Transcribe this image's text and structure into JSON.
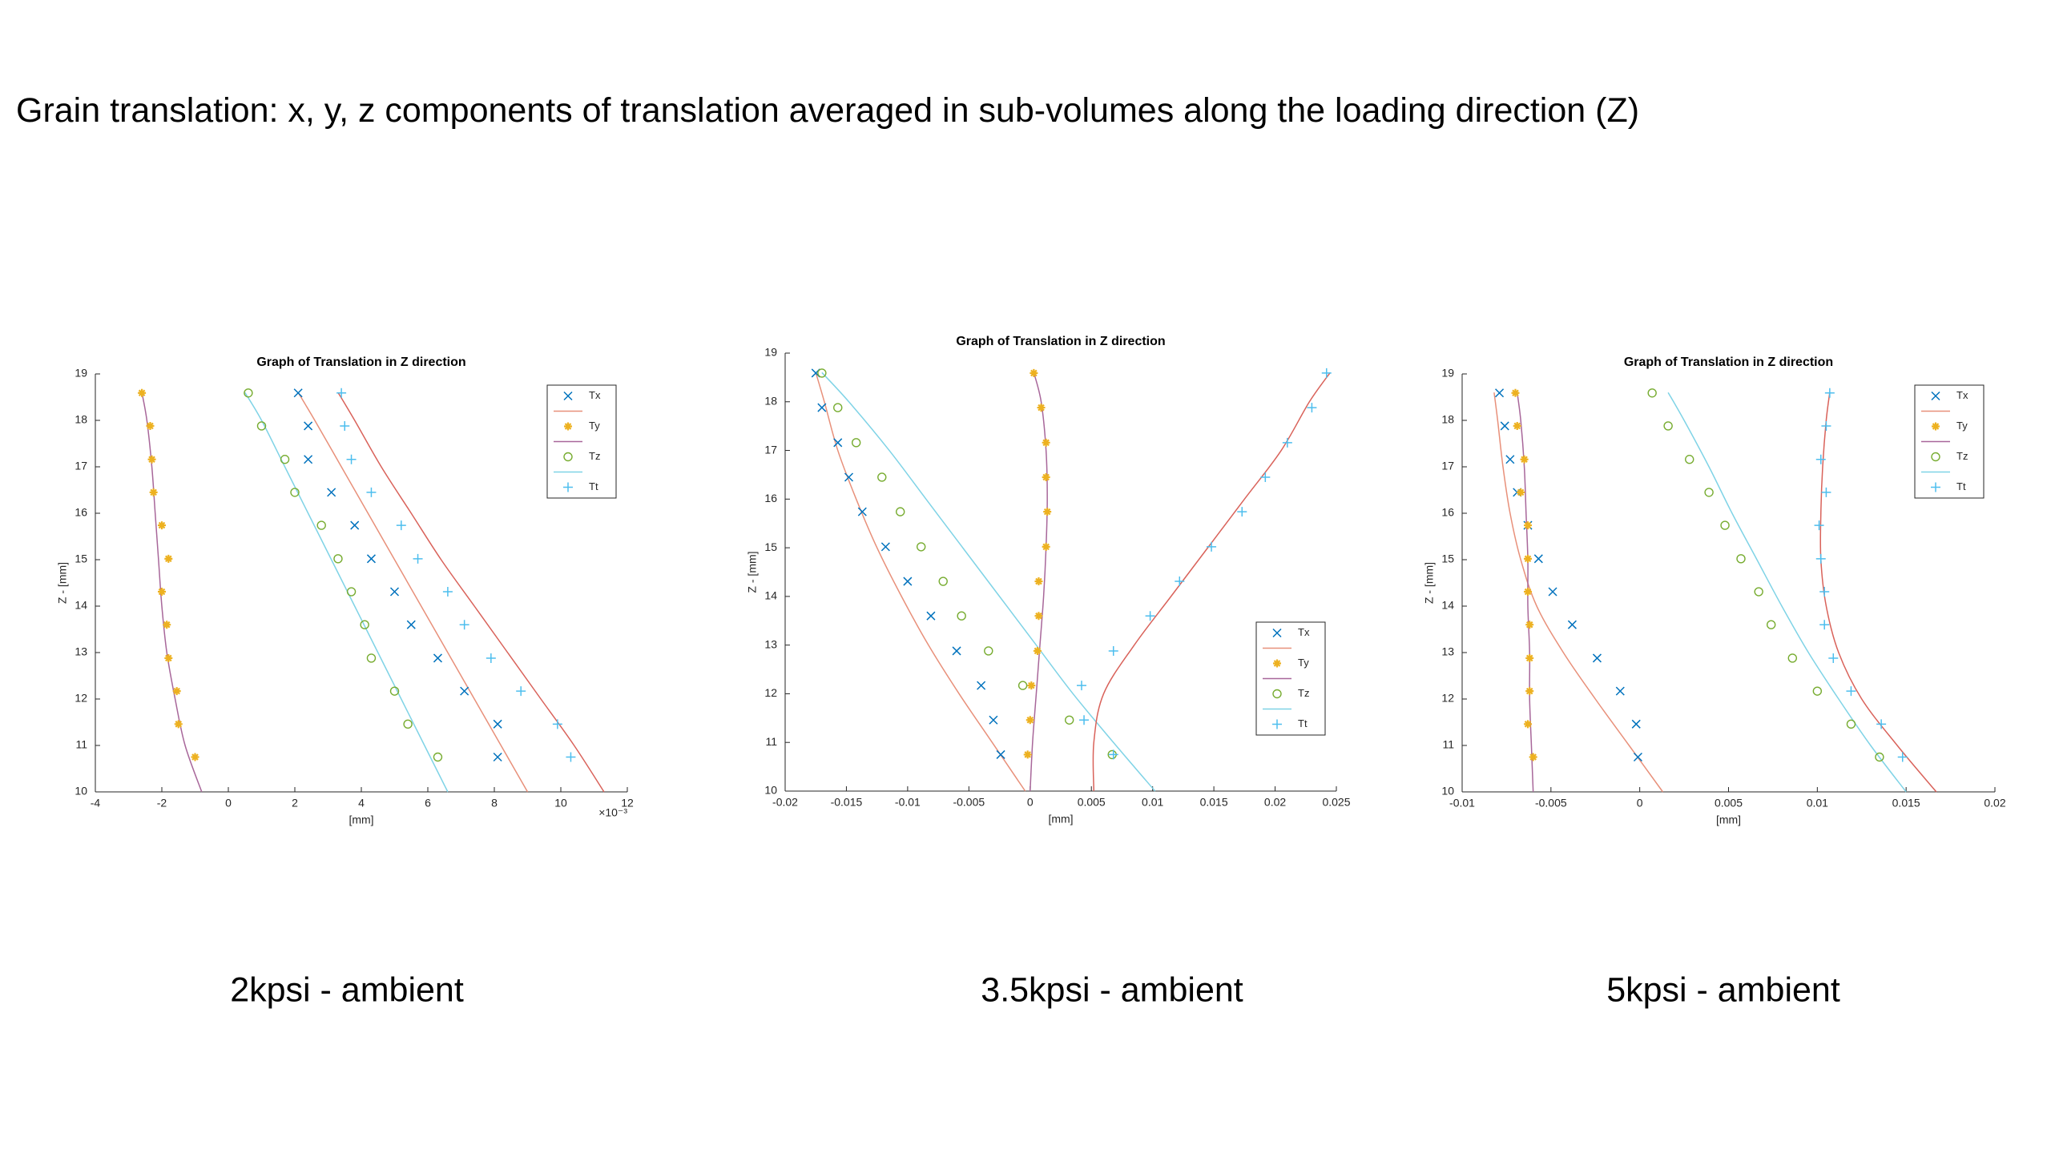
{
  "title": "Grain translation: x, y, z components of translation averaged in sub-volumes along the loading direction (Z)",
  "captions": [
    "2kpsi - ambient",
    "3.5kpsi - ambient",
    "5kpsi - ambient"
  ],
  "chart_data": [
    {
      "type": "scatter",
      "title": "Graph of Translation in Z direction",
      "x_label": "[mm]",
      "y_label": "Z - [mm]",
      "x_exponent": "×10⁻³",
      "xlim": [
        -4,
        12
      ],
      "xticks": [
        -4,
        -2,
        0,
        2,
        4,
        6,
        8,
        10,
        12
      ],
      "ylim": [
        10,
        19
      ],
      "yticks": [
        10,
        11,
        12,
        13,
        14,
        15,
        16,
        17,
        18,
        19
      ],
      "legend": "northeast",
      "grid": false,
      "y": [
        10.75,
        11.46,
        12.17,
        12.88,
        13.6,
        14.31,
        15.02,
        15.74,
        16.45,
        17.16,
        17.88,
        18.59
      ],
      "fit_y": [
        10,
        11,
        12,
        13,
        14,
        15,
        16,
        17,
        18,
        18.6
      ],
      "series": [
        {
          "name": "Tx",
          "color": "#0072bd",
          "marker": "x",
          "fit_color": "#e8907a",
          "fit_in_legend": true,
          "x": [
            8.1,
            8.1,
            7.1,
            6.3,
            5.5,
            5.0,
            4.3,
            3.8,
            3.1,
            2.4,
            2.4,
            2.1
          ],
          "fit_x": [
            9.0,
            8.2,
            7.4,
            6.6,
            5.8,
            5.0,
            4.2,
            3.4,
            2.6,
            2.1
          ]
        },
        {
          "name": "Ty",
          "color": "#edb120",
          "marker": "*",
          "fit_color": "#a8679a",
          "fit_in_legend": true,
          "x": [
            -1.0,
            -1.5,
            -1.55,
            -1.8,
            -1.85,
            -2.0,
            -1.8,
            -2.0,
            -2.25,
            -2.3,
            -2.35,
            -2.6
          ],
          "fit_x": [
            -0.8,
            -1.3,
            -1.6,
            -1.85,
            -2.0,
            -2.1,
            -2.2,
            -2.3,
            -2.45,
            -2.6
          ]
        },
        {
          "name": "Tz",
          "color": "#77ac30",
          "marker": "o",
          "fit_color": "#7fd3e6",
          "fit_in_legend": true,
          "x": [
            6.3,
            5.4,
            5.0,
            4.3,
            4.1,
            3.7,
            3.3,
            2.8,
            2.0,
            1.7,
            1.0,
            0.6
          ],
          "fit_x": [
            6.6,
            5.9,
            5.2,
            4.5,
            3.8,
            3.1,
            2.4,
            1.7,
            1.0,
            0.5
          ]
        },
        {
          "name": "Tt",
          "color": "#4dbeee",
          "marker": "+",
          "fit_color": "#d9625a",
          "fit_in_legend": false,
          "x": [
            10.3,
            9.9,
            8.8,
            7.9,
            7.1,
            6.6,
            5.7,
            5.2,
            4.3,
            3.7,
            3.5,
            3.4
          ],
          "fit_x": [
            11.3,
            10.4,
            9.4,
            8.4,
            7.4,
            6.4,
            5.5,
            4.6,
            3.8,
            3.3
          ]
        }
      ]
    },
    {
      "type": "scatter",
      "title": "Graph of Translation in Z direction",
      "x_label": "[mm]",
      "y_label": "Z - [mm]",
      "xlim": [
        -0.02,
        0.025
      ],
      "xticks": [
        -0.02,
        -0.015,
        -0.01,
        -0.005,
        0,
        0.005,
        0.01,
        0.015,
        0.02,
        0.025
      ],
      "ylim": [
        10,
        19
      ],
      "yticks": [
        10,
        11,
        12,
        13,
        14,
        15,
        16,
        17,
        18,
        19
      ],
      "legend": "southeast",
      "grid": false,
      "y": [
        10.75,
        11.46,
        12.17,
        12.88,
        13.6,
        14.31,
        15.02,
        15.74,
        16.45,
        17.16,
        17.88,
        18.59
      ],
      "fit_y": [
        10,
        11,
        12,
        13,
        14,
        15,
        16,
        17,
        18,
        18.6
      ],
      "series": [
        {
          "name": "Tx",
          "color": "#0072bd",
          "marker": "x",
          "fit_color": "#e8907a",
          "fit_in_legend": true,
          "x": [
            -0.0024,
            -0.003,
            -0.004,
            -0.006,
            -0.0081,
            -0.01,
            -0.0118,
            -0.0137,
            -0.0148,
            -0.0157,
            -0.017,
            -0.0175
          ],
          "fit_x": [
            -0.0004,
            -0.0031,
            -0.0058,
            -0.0083,
            -0.0105,
            -0.0125,
            -0.0142,
            -0.0157,
            -0.0168,
            -0.0175
          ]
        },
        {
          "name": "Ty",
          "color": "#edb120",
          "marker": "*",
          "fit_color": "#a8679a",
          "fit_in_legend": true,
          "x": [
            -0.0002,
            0,
            0.0001,
            0.0006,
            0.0007,
            0.0007,
            0.0013,
            0.0014,
            0.0013,
            0.0013,
            0.0009,
            0.0003
          ],
          "fit_x": [
            0,
            0.0002,
            0.0005,
            0.0008,
            0.0011,
            0.0013,
            0.0014,
            0.0013,
            0.0009,
            0.0003
          ]
        },
        {
          "name": "Tz",
          "color": "#77ac30",
          "marker": "o",
          "fit_color": "#7fd3e6",
          "fit_in_legend": true,
          "x": [
            0.0067,
            0.0032,
            -0.0006,
            -0.0034,
            -0.0056,
            -0.0071,
            -0.0089,
            -0.0106,
            -0.0121,
            -0.0142,
            -0.0157,
            -0.017
          ],
          "fit_x": [
            0.0102,
            0.0068,
            0.0035,
            0.0005,
            -0.0025,
            -0.0055,
            -0.0085,
            -0.0115,
            -0.0148,
            -0.017
          ]
        },
        {
          "name": "Tt",
          "color": "#4dbeee",
          "marker": "+",
          "fit_color": "#d9625a",
          "fit_in_legend": false,
          "x": [
            0.0068,
            0.0044,
            0.0042,
            0.0068,
            0.0098,
            0.0122,
            0.0148,
            0.0173,
            0.0192,
            0.021,
            0.023,
            0.0242
          ],
          "fit_x": [
            0.0052,
            0.0052,
            0.006,
            0.0085,
            0.0115,
            0.0145,
            0.0175,
            0.0205,
            0.0228,
            0.0245
          ]
        }
      ]
    },
    {
      "type": "scatter",
      "title": "Graph of Translation in Z direction",
      "x_label": "[mm]",
      "y_label": "Z - [mm]",
      "xlim": [
        -0.01,
        0.02
      ],
      "xticks": [
        -0.01,
        -0.005,
        0,
        0.005,
        0.01,
        0.015,
        0.02
      ],
      "ylim": [
        10,
        19
      ],
      "yticks": [
        10,
        11,
        12,
        13,
        14,
        15,
        16,
        17,
        18,
        19
      ],
      "legend": "northeast",
      "grid": false,
      "y": [
        10.75,
        11.46,
        12.17,
        12.88,
        13.6,
        14.31,
        15.02,
        15.74,
        16.45,
        17.16,
        17.88,
        18.59
      ],
      "fit_y": [
        10,
        11,
        12,
        13,
        14,
        15,
        16,
        17,
        18,
        18.6
      ],
      "series": [
        {
          "name": "Tx",
          "color": "#0072bd",
          "marker": "x",
          "fit_color": "#e8907a",
          "fit_in_legend": true,
          "x": [
            -0.0001,
            -0.0002,
            -0.0011,
            -0.0024,
            -0.0038,
            -0.0049,
            -0.0057,
            -0.0063,
            -0.0069,
            -0.0073,
            -0.0076,
            -0.0079
          ],
          "fit_x": [
            0.0013,
            -0.0006,
            -0.0025,
            -0.0043,
            -0.0058,
            -0.0067,
            -0.0073,
            -0.0077,
            -0.008,
            -0.0082
          ]
        },
        {
          "name": "Ty",
          "color": "#edb120",
          "marker": "*",
          "fit_color": "#a8679a",
          "fit_in_legend": true,
          "x": [
            -0.006,
            -0.0063,
            -0.0062,
            -0.0062,
            -0.0062,
            -0.0063,
            -0.0063,
            -0.0063,
            -0.0067,
            -0.0065,
            -0.0069,
            -0.007
          ],
          "fit_x": [
            -0.006,
            -0.0061,
            -0.0062,
            -0.0062,
            -0.0063,
            -0.0063,
            -0.0064,
            -0.0065,
            -0.0067,
            -0.0069
          ]
        },
        {
          "name": "Tz",
          "color": "#77ac30",
          "marker": "o",
          "fit_color": "#7fd3e6",
          "fit_in_legend": true,
          "x": [
            0.0135,
            0.0119,
            0.01,
            0.0086,
            0.0074,
            0.0067,
            0.0057,
            0.0048,
            0.0039,
            0.0028,
            0.0016,
            0.0007
          ],
          "fit_x": [
            0.015,
            0.013,
            0.0112,
            0.0095,
            0.008,
            0.0066,
            0.0052,
            0.0039,
            0.0025,
            0.0016
          ]
        },
        {
          "name": "Tt",
          "color": "#4dbeee",
          "marker": "+",
          "fit_color": "#d9625a",
          "fit_in_legend": false,
          "x": [
            0.0148,
            0.0136,
            0.0119,
            0.0109,
            0.0104,
            0.0104,
            0.0102,
            0.0101,
            0.0105,
            0.0102,
            0.0105,
            0.0107
          ],
          "fit_x": [
            0.0167,
            0.0145,
            0.0125,
            0.0112,
            0.0105,
            0.0102,
            0.0102,
            0.0103,
            0.0105,
            0.0107
          ]
        }
      ]
    }
  ]
}
